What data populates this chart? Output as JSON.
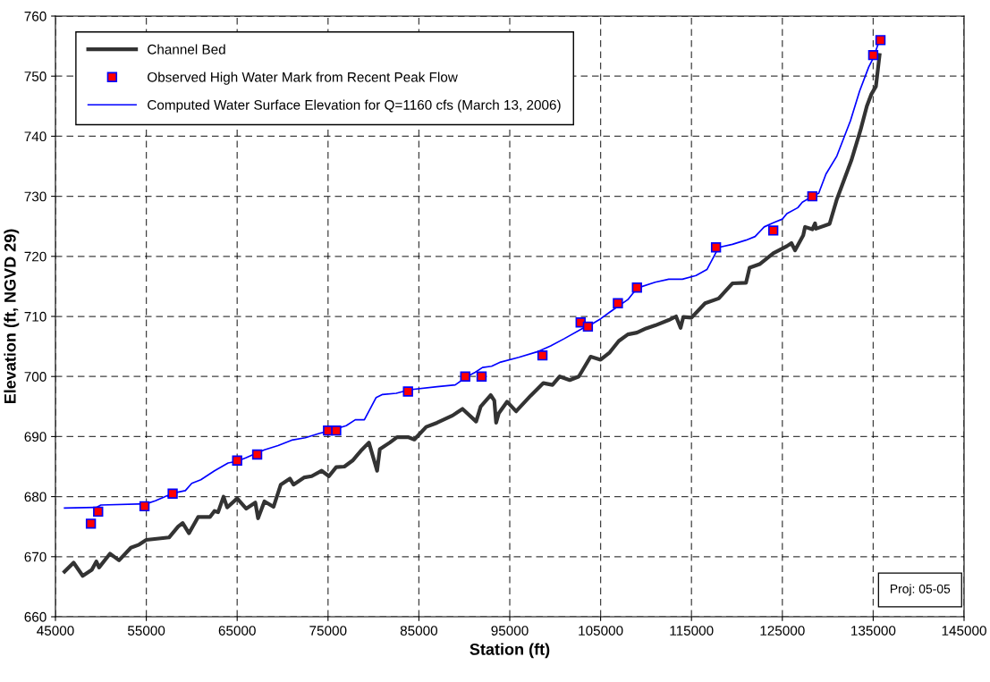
{
  "chart_data": {
    "type": "line",
    "xlabel": "Station (ft)",
    "ylabel": "Elevation (ft, NGVD 29)",
    "xlim": [
      45000,
      145000
    ],
    "xticks": [
      45000,
      55000,
      65000,
      75000,
      85000,
      95000,
      105000,
      115000,
      125000,
      135000,
      145000
    ],
    "ylim": [
      660,
      760
    ],
    "yticks": [
      660,
      670,
      680,
      690,
      700,
      710,
      720,
      730,
      740,
      750,
      760
    ],
    "grid": true,
    "legend": "top left",
    "annotations": [
      "Proj: 05-05"
    ],
    "series": [
      {
        "name": "Channel Bed",
        "color": "#333333",
        "marker": "none",
        "x": [
          46000,
          47000,
          48000,
          49000,
          49500,
          49800,
          51000,
          52000,
          53300,
          54200,
          55000,
          57500,
          58500,
          59000,
          59700,
          60700,
          62000,
          62500,
          62900,
          63500,
          63900,
          65000,
          66000,
          67000,
          67300,
          68000,
          69000,
          69800,
          70800,
          71200,
          72400,
          73200,
          74300,
          75100,
          75900,
          76800,
          77700,
          78600,
          79500,
          80400,
          80700,
          81800,
          82600,
          83800,
          84500,
          85800,
          87000,
          88700,
          89800,
          91300,
          91800,
          92900,
          93300,
          93500,
          93800,
          94700,
          95700,
          97300,
          98700,
          99700,
          100500,
          101600,
          102600,
          103900,
          105000,
          106000,
          107000,
          108000,
          109000,
          110000,
          111000,
          112500,
          113300,
          113800,
          114100,
          115000,
          116500,
          118000,
          119500,
          121000,
          121400,
          122500,
          124000,
          125500,
          126000,
          126400,
          127300,
          127500,
          128300,
          128600,
          128700,
          130200,
          131000,
          132600,
          133600,
          134300,
          134800,
          135300,
          135700
        ],
        "values": [
          667.5,
          669,
          666.8,
          667.8,
          669.2,
          668.2,
          670.5,
          669.4,
          671.5,
          672,
          672.8,
          673.2,
          675,
          675.6,
          673.9,
          676.6,
          676.6,
          677.6,
          677.4,
          680,
          678.2,
          679.7,
          678,
          679,
          676.4,
          679.2,
          678.3,
          682,
          683,
          682,
          683.2,
          683.4,
          684.3,
          683.4,
          684.9,
          685,
          686,
          687.6,
          689,
          684.3,
          687.9,
          689,
          689.9,
          689.9,
          689.5,
          691.6,
          692.3,
          693.5,
          694.6,
          692.5,
          695,
          696.9,
          696,
          692.3,
          693.9,
          695.8,
          694.2,
          696.8,
          698.9,
          698.6,
          700,
          699.4,
          700,
          703.3,
          702.8,
          704,
          705.9,
          707,
          707.3,
          708,
          708.5,
          709.4,
          710,
          708.1,
          709.9,
          709.8,
          712.2,
          713,
          715.5,
          715.6,
          718.1,
          718.7,
          720.5,
          721.7,
          722.2,
          721,
          723.5,
          724.9,
          724.5,
          725.5,
          724.6,
          725.4,
          729.5,
          736,
          741,
          745,
          747,
          748.3,
          753.5
        ]
      },
      {
        "name": "Observed High Water Mark from Recent Peak Flow",
        "type": "scatter",
        "color": "#ff0000",
        "marker": "square",
        "x": [
          48900,
          49700,
          54800,
          57900,
          65000,
          67200,
          75000,
          75900,
          83800,
          90100,
          91900,
          98600,
          102800,
          103600,
          106900,
          109000,
          117700,
          124000,
          128300,
          135000,
          135800
        ],
        "values": [
          675.5,
          677.5,
          678.4,
          680.5,
          686,
          687,
          691,
          691,
          697.5,
          700,
          700,
          703.5,
          709,
          708.3,
          712.2,
          714.8,
          721.5,
          724.3,
          730,
          753.5,
          756
        ]
      },
      {
        "name": "Computed Water Surface Elevation for Q=1160 cfs (March 13, 2006)",
        "color": "#0000ff",
        "marker": "none",
        "x": [
          46000,
          49500,
          50000,
          55000,
          56000,
          58000,
          59300,
          60000,
          61000,
          62500,
          64000,
          65000,
          66000,
          68000,
          69500,
          71000,
          72500,
          74000,
          75000,
          77000,
          78000,
          79000,
          80300,
          81000,
          82500,
          84000,
          87000,
          89000,
          90300,
          91200,
          92000,
          93000,
          94000,
          96000,
          98000,
          99500,
          101000,
          103000,
          104000,
          105000,
          106000,
          108000,
          109000,
          111000,
          112500,
          114000,
          115500,
          116700,
          118000,
          119500,
          121000,
          122000,
          123000,
          124000,
          125000,
          125500,
          126700,
          127200,
          128300,
          129000,
          129800,
          131000,
          132500,
          133500,
          134500,
          135000,
          135700
        ],
        "values": [
          678.1,
          678.2,
          678.6,
          678.8,
          679.3,
          680.6,
          681,
          682.2,
          682.8,
          684.3,
          685.6,
          685.9,
          686.5,
          687.8,
          688.5,
          689.4,
          689.8,
          690.5,
          690.9,
          691.8,
          692.8,
          692.8,
          696.5,
          697,
          697.2,
          697.8,
          698.3,
          698.6,
          700,
          700.7,
          701.5,
          701.7,
          702.4,
          703.2,
          704.1,
          705.1,
          706.3,
          708,
          708.7,
          709.6,
          710.7,
          712.8,
          714.7,
          715.7,
          716.2,
          716.2,
          716.8,
          717.8,
          721.5,
          722,
          722.7,
          723.3,
          724.9,
          725.6,
          726.2,
          727.1,
          728.1,
          729,
          730,
          730.5,
          733.7,
          736.7,
          742.6,
          747.5,
          751.5,
          753,
          756
        ]
      }
    ]
  }
}
